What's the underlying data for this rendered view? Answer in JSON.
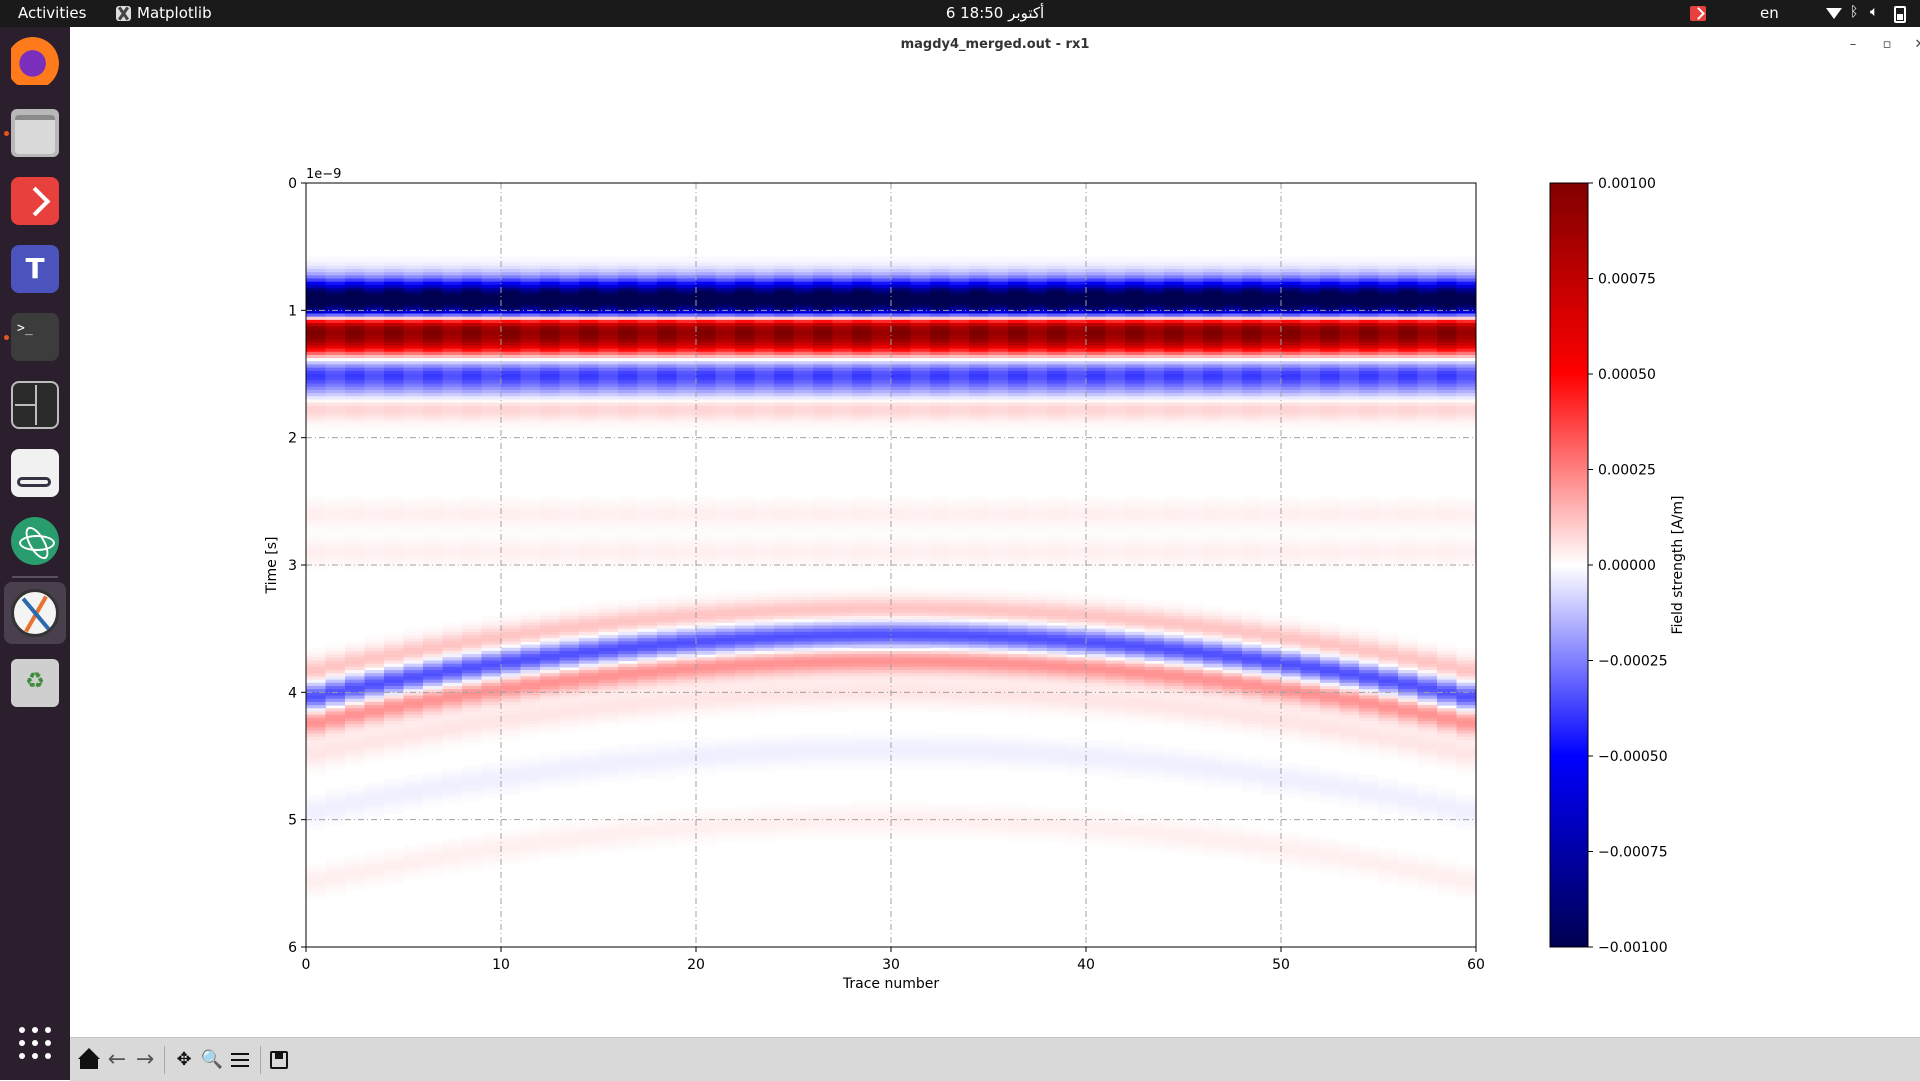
{
  "topbar": {
    "activities": "Activities",
    "app_name": "Matplotlib",
    "clock": "6 أكتوبر  18:50",
    "lang": "en"
  },
  "dock": {
    "items": [
      "firefox-icon",
      "files-icon",
      "anydesk-icon",
      "teams-icon",
      "terminal-icon",
      "terminator-icon",
      "reader-icon",
      "atom-icon",
      "matplotlib-icon",
      "trash-icon",
      "app-grid-icon"
    ],
    "terminal_prompt": ">_"
  },
  "window": {
    "title": "magdy4_merged.out - rx1",
    "minimize": "–",
    "maximize": "▫",
    "close": "✕"
  },
  "toolbar": {
    "buttons": [
      "home-icon",
      "back-icon",
      "forward-icon",
      "pan-icon",
      "zoom-icon",
      "configure-subplots-icon",
      "save-icon"
    ],
    "back_glyph": "←",
    "forward_glyph": "→",
    "pan_glyph": "✥",
    "zoom_glyph": "🔍"
  },
  "chart_data": {
    "type": "heatmap",
    "xlabel": "Trace number",
    "ylabel": "Time [s]",
    "y_offset_label": "1e−9",
    "xlim": [
      0,
      60
    ],
    "ylim": [
      6,
      0
    ],
    "x_ticks": [
      "0",
      "10",
      "20",
      "30",
      "40",
      "50",
      "60"
    ],
    "x_tick_values": [
      0,
      10,
      20,
      30,
      40,
      50,
      60
    ],
    "y_ticks": [
      "0",
      "1",
      "2",
      "3",
      "4",
      "5",
      "6"
    ],
    "y_tick_values": [
      0,
      1,
      2,
      3,
      4,
      5,
      6
    ],
    "grid": true,
    "colormap": "seismic",
    "colorbar": {
      "label": "Field strength [A/m]",
      "range": [
        -0.001,
        0.001
      ],
      "ticks": [
        "0.00100",
        "0.00075",
        "0.00050",
        "0.00025",
        "0.00000",
        "−0.00025",
        "−0.00050",
        "−0.00075",
        "−0.00100"
      ],
      "tick_values": [
        0.001,
        0.00075,
        0.0005,
        0.00025,
        0,
        -0.00025,
        -0.0005,
        -0.00075,
        -0.001
      ]
    },
    "direct_wave_bands": [
      {
        "t": 0.76,
        "value": -0.00015
      },
      {
        "t": 0.88,
        "value": -0.0009
      },
      {
        "t": 1.0,
        "value": -0.0008
      },
      {
        "t": 1.12,
        "value": 0.0009
      },
      {
        "t": 1.25,
        "value": 0.0007
      },
      {
        "t": 1.38,
        "value": 0.0
      },
      {
        "t": 1.5,
        "value": -0.00035
      },
      {
        "t": 1.62,
        "value": -0.00015
      },
      {
        "t": 1.76,
        "value": 0.0001
      },
      {
        "t": 2.6,
        "value": 3e-05
      },
      {
        "t": 2.9,
        "value": 3e-05
      }
    ],
    "hyperbola": {
      "apex_trace": 30,
      "apex_time": 3.55,
      "edge_time": 4.05,
      "bands": [
        {
          "dt": -0.2,
          "value": 0.00012
        },
        {
          "dt": 0.0,
          "value": -0.00035
        },
        {
          "dt": 0.2,
          "value": 0.00022
        },
        {
          "dt": 0.45,
          "value": 5e-05
        },
        {
          "dt": 0.9,
          "value": -3e-05
        },
        {
          "dt": 1.45,
          "value": 3e-05
        }
      ]
    }
  }
}
